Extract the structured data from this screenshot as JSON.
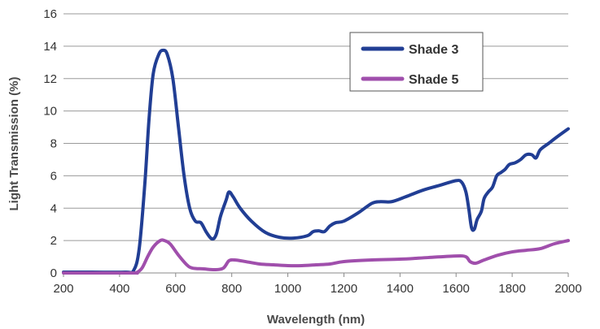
{
  "chart_data": {
    "type": "line",
    "xlabel": "Wavelength (nm)",
    "ylabel": "Light Transmission (%)",
    "xlim": [
      200,
      2000
    ],
    "ylim": [
      0,
      16
    ],
    "x_ticks": [
      200,
      400,
      600,
      800,
      1000,
      1200,
      1400,
      1600,
      1800,
      2000
    ],
    "y_ticks": [
      0,
      2,
      4,
      6,
      8,
      10,
      12,
      14,
      16
    ],
    "grid": "horizontal",
    "legend": "top-right",
    "series": [
      {
        "name": "Shade 3",
        "color": "#213e94",
        "points": [
          [
            200,
            0.05
          ],
          [
            300,
            0.05
          ],
          [
            420,
            0.05
          ],
          [
            450,
            0.15
          ],
          [
            470,
            1.5
          ],
          [
            490,
            5.5
          ],
          [
            505,
            9.5
          ],
          [
            520,
            12.3
          ],
          [
            540,
            13.5
          ],
          [
            555,
            13.75
          ],
          [
            570,
            13.5
          ],
          [
            590,
            12.0
          ],
          [
            610,
            9.0
          ],
          [
            630,
            6.0
          ],
          [
            650,
            4.0
          ],
          [
            670,
            3.2
          ],
          [
            690,
            3.1
          ],
          [
            710,
            2.5
          ],
          [
            730,
            2.1
          ],
          [
            745,
            2.4
          ],
          [
            760,
            3.5
          ],
          [
            780,
            4.5
          ],
          [
            790,
            5.0
          ],
          [
            805,
            4.7
          ],
          [
            830,
            4.0
          ],
          [
            870,
            3.2
          ],
          [
            920,
            2.5
          ],
          [
            970,
            2.2
          ],
          [
            1020,
            2.15
          ],
          [
            1070,
            2.3
          ],
          [
            1090,
            2.55
          ],
          [
            1110,
            2.6
          ],
          [
            1130,
            2.55
          ],
          [
            1150,
            2.9
          ],
          [
            1170,
            3.1
          ],
          [
            1200,
            3.2
          ],
          [
            1250,
            3.7
          ],
          [
            1300,
            4.3
          ],
          [
            1330,
            4.4
          ],
          [
            1370,
            4.4
          ],
          [
            1420,
            4.7
          ],
          [
            1480,
            5.1
          ],
          [
            1540,
            5.4
          ],
          [
            1600,
            5.7
          ],
          [
            1620,
            5.6
          ],
          [
            1635,
            5.0
          ],
          [
            1645,
            4.0
          ],
          [
            1655,
            2.8
          ],
          [
            1665,
            2.7
          ],
          [
            1675,
            3.3
          ],
          [
            1690,
            3.8
          ],
          [
            1700,
            4.6
          ],
          [
            1715,
            5.0
          ],
          [
            1730,
            5.3
          ],
          [
            1745,
            6.0
          ],
          [
            1760,
            6.2
          ],
          [
            1775,
            6.4
          ],
          [
            1790,
            6.7
          ],
          [
            1810,
            6.8
          ],
          [
            1830,
            7.0
          ],
          [
            1850,
            7.3
          ],
          [
            1870,
            7.3
          ],
          [
            1885,
            7.1
          ],
          [
            1900,
            7.6
          ],
          [
            1930,
            8.0
          ],
          [
            1960,
            8.4
          ],
          [
            2000,
            8.9
          ]
        ]
      },
      {
        "name": "Shade 5",
        "color": "#a04fac",
        "points": [
          [
            200,
            0.0
          ],
          [
            440,
            0.0
          ],
          [
            460,
            0.02
          ],
          [
            480,
            0.3
          ],
          [
            500,
            1.0
          ],
          [
            520,
            1.6
          ],
          [
            545,
            2.0
          ],
          [
            560,
            2.0
          ],
          [
            580,
            1.8
          ],
          [
            610,
            1.1
          ],
          [
            640,
            0.5
          ],
          [
            660,
            0.3
          ],
          [
            700,
            0.25
          ],
          [
            740,
            0.2
          ],
          [
            770,
            0.3
          ],
          [
            790,
            0.75
          ],
          [
            810,
            0.8
          ],
          [
            850,
            0.7
          ],
          [
            900,
            0.55
          ],
          [
            950,
            0.5
          ],
          [
            1000,
            0.45
          ],
          [
            1050,
            0.45
          ],
          [
            1100,
            0.5
          ],
          [
            1150,
            0.55
          ],
          [
            1200,
            0.7
          ],
          [
            1300,
            0.8
          ],
          [
            1400,
            0.85
          ],
          [
            1500,
            0.95
          ],
          [
            1600,
            1.05
          ],
          [
            1635,
            1.0
          ],
          [
            1650,
            0.7
          ],
          [
            1670,
            0.6
          ],
          [
            1700,
            0.8
          ],
          [
            1750,
            1.1
          ],
          [
            1800,
            1.3
          ],
          [
            1850,
            1.4
          ],
          [
            1900,
            1.5
          ],
          [
            1950,
            1.8
          ],
          [
            2000,
            2.0
          ]
        ]
      }
    ]
  }
}
